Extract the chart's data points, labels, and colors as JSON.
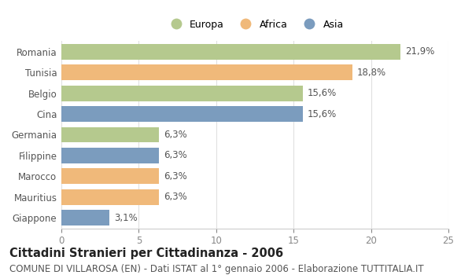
{
  "categories": [
    "Romania",
    "Tunisia",
    "Belgio",
    "Cina",
    "Germania",
    "Filippine",
    "Marocco",
    "Mauritius",
    "Giappone"
  ],
  "values": [
    21.9,
    18.8,
    15.6,
    15.6,
    6.3,
    6.3,
    6.3,
    6.3,
    3.1
  ],
  "labels": [
    "21,9%",
    "18,8%",
    "15,6%",
    "15,6%",
    "6,3%",
    "6,3%",
    "6,3%",
    "6,3%",
    "3,1%"
  ],
  "continents": [
    "Europa",
    "Africa",
    "Europa",
    "Asia",
    "Europa",
    "Asia",
    "Africa",
    "Africa",
    "Asia"
  ],
  "colors": {
    "Europa": "#b5c98e",
    "Africa": "#f0b97a",
    "Asia": "#7b9cbe"
  },
  "legend_order": [
    "Europa",
    "Africa",
    "Asia"
  ],
  "xlim": [
    0,
    25
  ],
  "xticks": [
    0,
    5,
    10,
    15,
    20,
    25
  ],
  "title": "Cittadini Stranieri per Cittadinanza - 2006",
  "subtitle": "COMUNE DI VILLAROSA (EN) - Dati ISTAT al 1° gennaio 2006 - Elaborazione TUTTITALIA.IT",
  "title_fontsize": 10.5,
  "subtitle_fontsize": 8.5,
  "background_color": "#ffffff",
  "bar_height": 0.75
}
